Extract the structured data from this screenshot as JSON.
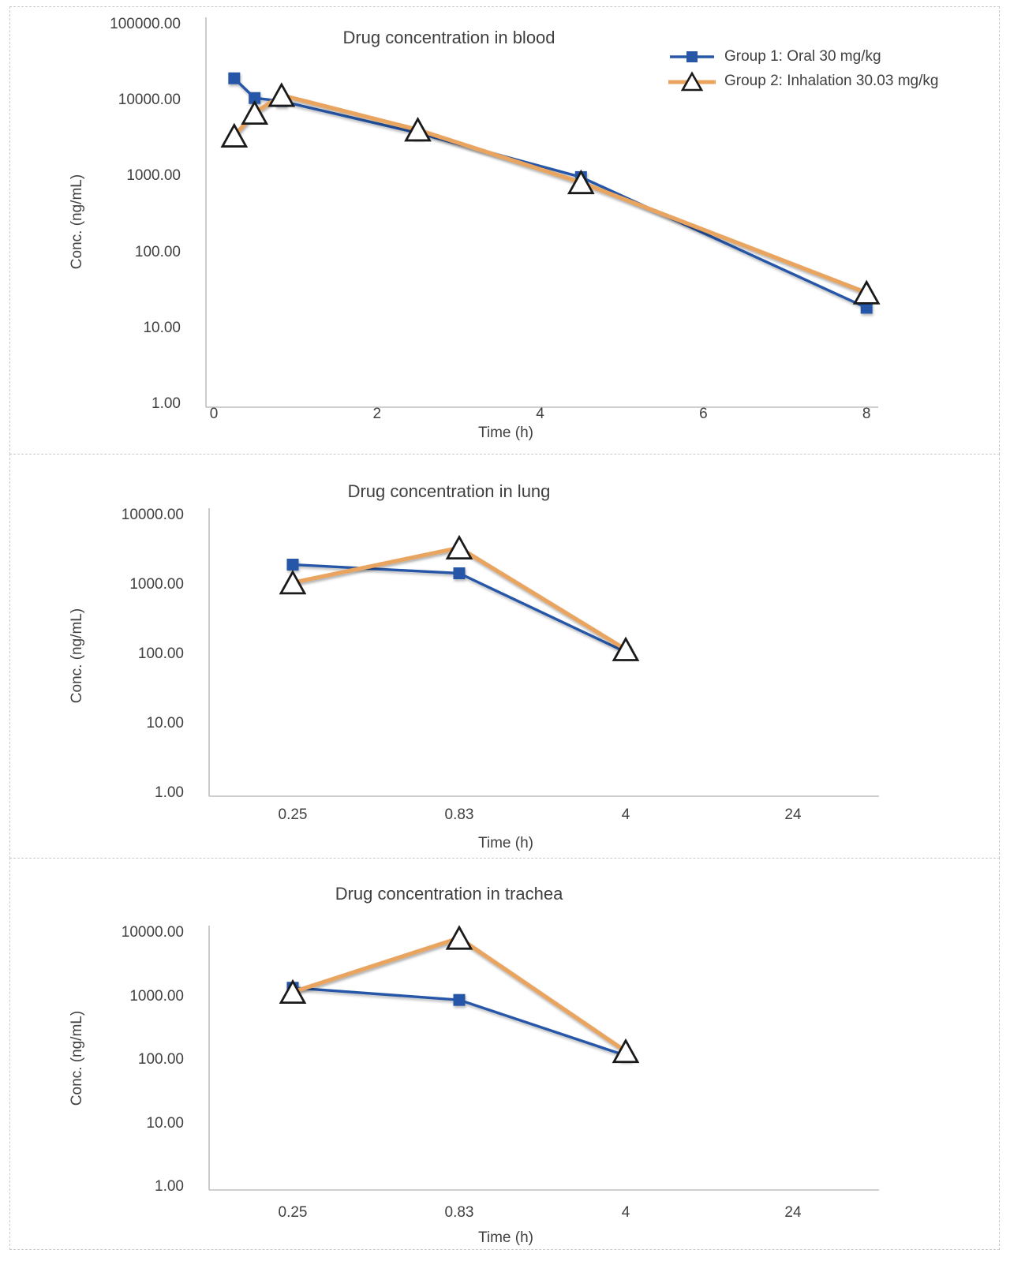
{
  "figure": {
    "background": "#ffffff",
    "panel_border_color": "#c9c9c9",
    "text_color": "#404040",
    "axis_line_color": "#bfbfbf"
  },
  "series_meta": {
    "group1": {
      "label": "Group 1: Oral 30 mg/kg",
      "color": "#2857A7",
      "marker": "filled-square"
    },
    "group2": {
      "label": "Group 2: Inhalation 30.03 mg/kg",
      "color": "#E9A45F",
      "marker": "open-triangle",
      "marker_outline": "#1a1a1a",
      "marker_fill": "#ffffff"
    }
  },
  "chart_data": [
    {
      "type": "line",
      "title": "Drug concentration in blood",
      "xlabel": "Time (h)",
      "ylabel": "Conc. (ng/mL)",
      "x_scale": "linear",
      "y_scale": "log",
      "xlim": [
        0,
        8
      ],
      "ylim": [
        1,
        100000
      ],
      "x_axis_ticks": [
        0,
        2,
        4,
        6,
        8
      ],
      "y_axis_ticks": [
        "100000.00",
        "10000.00",
        "1000.00",
        "100.00",
        "10.00",
        "1.00"
      ],
      "x": [
        0.25,
        0.5,
        0.83,
        2.5,
        4.5,
        8
      ],
      "series": [
        {
          "name": "Group 1: Oral 30 mg/kg",
          "values": [
            20000,
            11000,
            10000,
            3800,
            1000,
            19
          ]
        },
        {
          "name": "Group 2: Inhalation 30.03 mg/kg",
          "values": [
            3500,
            7000,
            12000,
            4200,
            850,
            30
          ]
        }
      ],
      "legend": {
        "position": "top-right",
        "entries": [
          "Group 1: Oral 30 mg/kg",
          "Group 2: Inhalation 30.03 mg/kg"
        ]
      }
    },
    {
      "type": "line",
      "title": "Drug concentration in lung",
      "xlabel": "Time (h)",
      "ylabel": "Conc. (ng/mL)",
      "x_scale": "category",
      "y_scale": "log",
      "ylim": [
        1,
        10000
      ],
      "categories": [
        "0.25",
        "0.83",
        "4",
        "24"
      ],
      "y_axis_ticks": [
        "10000.00",
        "1000.00",
        "100.00",
        "10.00",
        "1.00"
      ],
      "series": [
        {
          "name": "Group 1: Oral 30 mg/kg",
          "values": [
            2000,
            1500,
            110,
            null
          ]
        },
        {
          "name": "Group 2: Inhalation 30.03 mg/kg",
          "values": [
            1100,
            3500,
            120,
            null
          ]
        }
      ]
    },
    {
      "type": "line",
      "title": "Drug concentration in trachea",
      "xlabel": "Time (h)",
      "ylabel": "Conc. (ng/mL)",
      "x_scale": "category",
      "y_scale": "log",
      "ylim": [
        1,
        10000
      ],
      "categories": [
        "0.25",
        "0.83",
        "4",
        "24"
      ],
      "y_axis_ticks": [
        "10000.00",
        "1000.00",
        "100.00",
        "10.00",
        "1.00"
      ],
      "series": [
        {
          "name": "Group 1: Oral 30 mg/kg",
          "values": [
            1400,
            900,
            120,
            null
          ]
        },
        {
          "name": "Group 2: Inhalation 30.03 mg/kg",
          "values": [
            1200,
            8500,
            140,
            null
          ]
        }
      ]
    }
  ]
}
